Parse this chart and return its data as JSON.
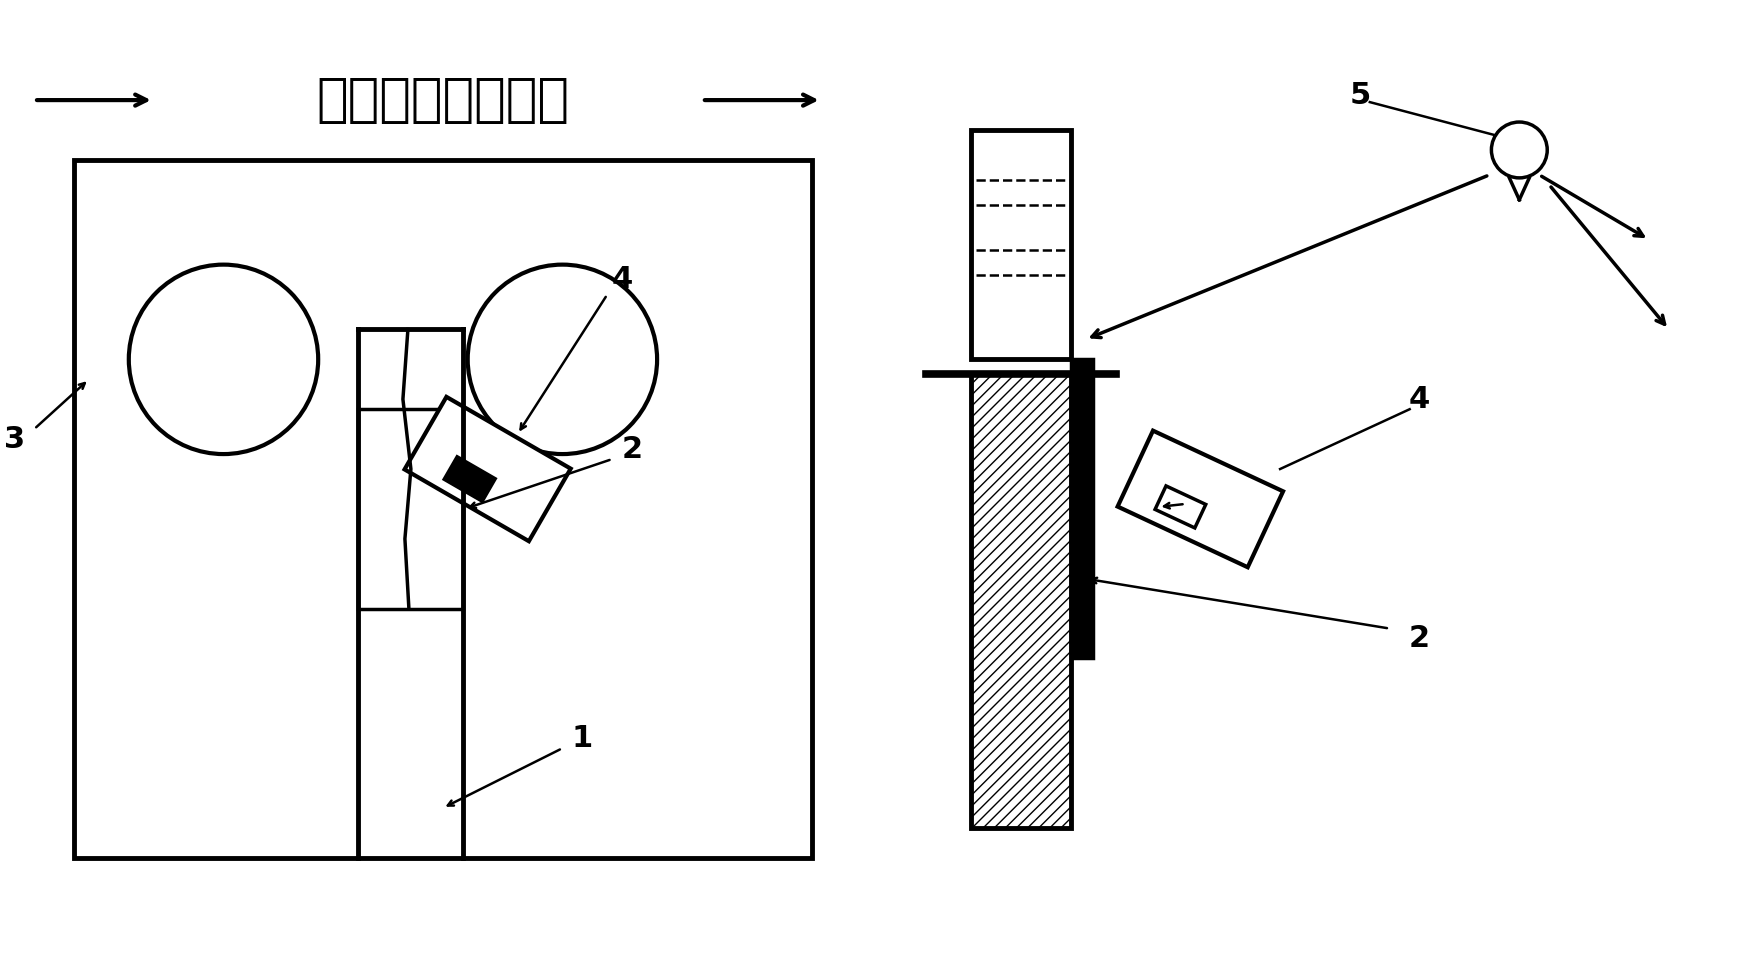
{
  "title_text": "被测式样受力方向",
  "background_color": "#ffffff",
  "line_color": "#000000",
  "lw": 2.5,
  "fig_width": 17.41,
  "fig_height": 9.59
}
